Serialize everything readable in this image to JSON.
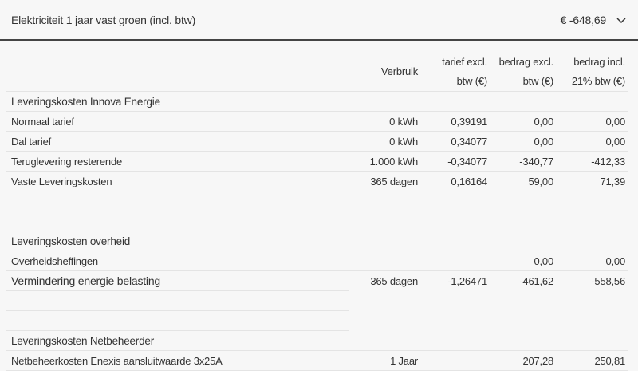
{
  "header": {
    "title": "Elektriciteit 1 jaar vast groen (incl. btw)",
    "total": "€ -648,69",
    "icon": "chevron-down-icon"
  },
  "columns": [
    {
      "l1": "",
      "l2": ""
    },
    {
      "l1": "Verbruik",
      "l2": ""
    },
    {
      "l1": "tarief excl.",
      "l2": "btw (€)"
    },
    {
      "l1": "bedrag excl.",
      "l2": "btw (€)"
    },
    {
      "l1": "bedrag incl.",
      "l2": "21% btw (€)"
    }
  ],
  "rows": [
    {
      "type": "section",
      "label": "Leveringskosten Innova Energie",
      "cells": [
        "",
        "",
        "",
        ""
      ]
    },
    {
      "type": "item",
      "label": "Normaal tarief",
      "cells": [
        "0 kWh",
        "0,39191",
        "0,00",
        "0,00"
      ]
    },
    {
      "type": "item",
      "label": "Dal tarief",
      "cells": [
        "0 kWh",
        "0,34077",
        "0,00",
        "0,00"
      ]
    },
    {
      "type": "item",
      "label": "Teruglevering resterende",
      "cells": [
        "1.000 kWh",
        "-0,34077",
        "-340,77",
        "-412,33"
      ]
    },
    {
      "type": "item",
      "label": "Vaste Leveringskosten",
      "cells": [
        "365 dagen",
        "0,16164",
        "59,00",
        "71,39"
      ]
    },
    {
      "type": "empty",
      "label": "",
      "cells": [
        "",
        "",
        "",
        ""
      ]
    },
    {
      "type": "empty",
      "label": "",
      "cells": [
        "",
        "",
        "",
        ""
      ]
    },
    {
      "type": "section",
      "label": "Leveringskosten overheid",
      "cells": [
        "",
        "",
        "",
        ""
      ]
    },
    {
      "type": "item",
      "label": "Overheidsheffingen",
      "cells": [
        "",
        "",
        "0,00",
        "0,00"
      ]
    },
    {
      "type": "bold",
      "label": "Vermindering energie belasting",
      "cells": [
        "365 dagen",
        "-1,26471",
        "-461,62",
        "-558,56"
      ]
    },
    {
      "type": "empty",
      "label": "",
      "cells": [
        "",
        "",
        "",
        ""
      ]
    },
    {
      "type": "empty",
      "label": "",
      "cells": [
        "",
        "",
        "",
        ""
      ]
    },
    {
      "type": "section",
      "label": "Leveringskosten Netbeheerder",
      "cells": [
        "",
        "",
        "",
        ""
      ]
    },
    {
      "type": "item",
      "label": "Netbeheerkosten Enexis aansluitwaarde 3x25A",
      "cells": [
        "1 Jaar",
        "",
        "207,28",
        "250,81"
      ]
    }
  ]
}
